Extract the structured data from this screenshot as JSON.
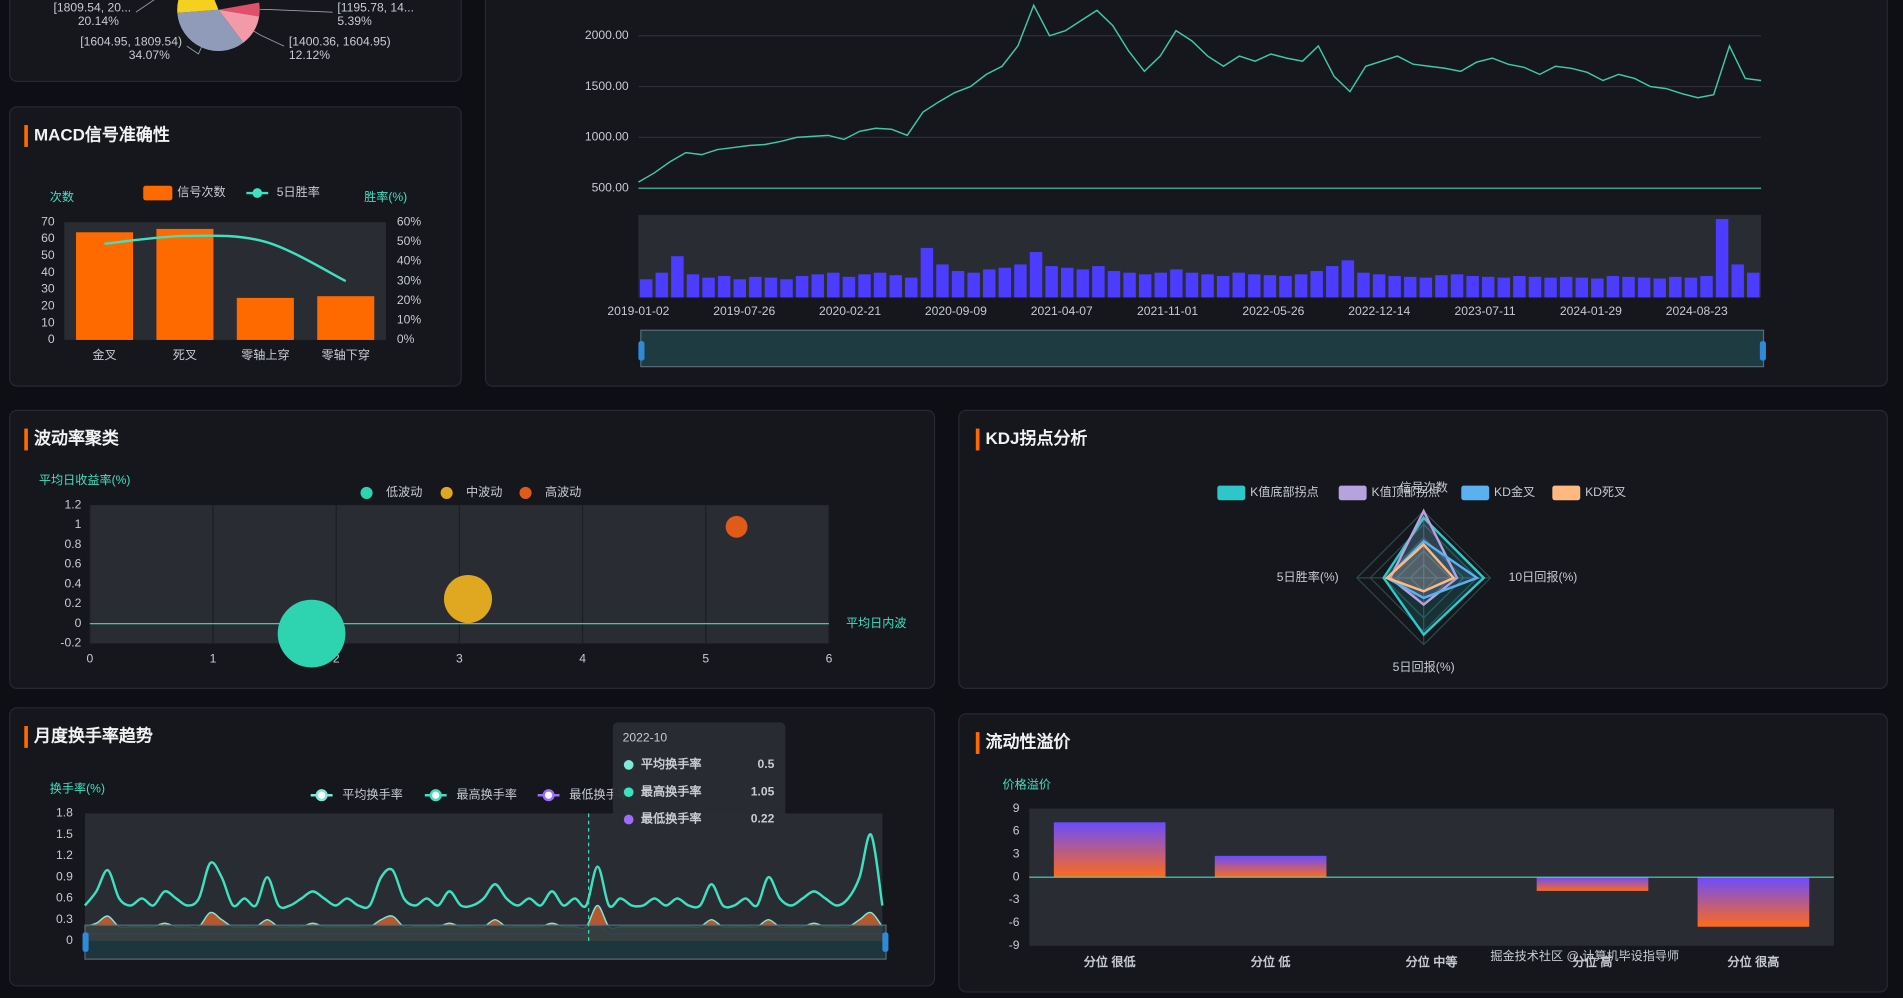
{
  "pie": {
    "labels": [
      "[1195.78, 14...",
      "[1400.36, 1604.95)",
      "[1604.95, 1809.54)",
      "[1809.54, 20..."
    ],
    "values": [
      5.39,
      12.12,
      34.07,
      20.14
    ],
    "value_labels": [
      "5.39%",
      "12.12%",
      "34.07%",
      "20.14%"
    ],
    "colors": [
      "#e0506a",
      "#f29aa8",
      "#8f9bb8",
      "#f5d01e"
    ]
  },
  "macd": {
    "title": "MACD信号准确性",
    "y_name": "次数",
    "y2_name": "胜率(%)",
    "categories": [
      "金叉",
      "死叉",
      "零轴上穿",
      "零轴下穿"
    ],
    "series": [
      {
        "name": "信号次数",
        "color": "#ff6a00",
        "values": [
          64,
          66,
          25,
          26
        ]
      },
      {
        "name": "5日胜率",
        "color": "#3ee0c0",
        "values": [
          49,
          53,
          50,
          30
        ],
        "axis": "y2"
      }
    ],
    "ylim": [
      0,
      70
    ],
    "yticks": [
      0,
      10,
      20,
      30,
      40,
      50,
      60,
      70
    ],
    "y2lim": [
      0,
      60
    ],
    "y2ticks": [
      {
        "value": 0,
        "label": "0%"
      },
      {
        "value": 10,
        "label": "10%"
      },
      {
        "value": 20,
        "label": "20%"
      },
      {
        "value": 30,
        "label": "30%"
      },
      {
        "value": 40,
        "label": "40%"
      },
      {
        "value": 50,
        "label": "50%"
      },
      {
        "value": 60,
        "label": "60%"
      }
    ]
  },
  "price": {
    "x_labels": [
      "2019-01-02",
      "2019-07-26",
      "2020-02-21",
      "2020-09-09",
      "2021-04-07",
      "2021-11-01",
      "2022-05-26",
      "2022-12-14",
      "2023-07-11",
      "2024-01-29",
      "2024-08-23"
    ],
    "values": [
      560,
      650,
      760,
      850,
      830,
      880,
      900,
      920,
      930,
      960,
      1000,
      1010,
      1020,
      980,
      1060,
      1090,
      1080,
      1020,
      1250,
      1350,
      1440,
      1500,
      1620,
      1700,
      1900,
      2300,
      2000,
      2050,
      2150,
      2250,
      2100,
      1850,
      1650,
      1800,
      2050,
      1950,
      1800,
      1700,
      1800,
      1750,
      1820,
      1780,
      1750,
      1900,
      1600,
      1450,
      1700,
      1750,
      1800,
      1720,
      1700,
      1680,
      1650,
      1740,
      1780,
      1720,
      1690,
      1620,
      1700,
      1680,
      1640,
      1560,
      1620,
      1580,
      1500,
      1480,
      1430,
      1390,
      1420,
      1900,
      1580,
      1560
    ],
    "color": "#3ec9a8",
    "ylim": [
      500,
      2340
    ],
    "yticks": [
      {
        "value": 500,
        "label": "500.00"
      },
      {
        "value": 1000,
        "label": "1000.00"
      },
      {
        "value": 1500,
        "label": "1500.00"
      },
      {
        "value": 2000,
        "label": "2000.00"
      }
    ],
    "volume": {
      "color": "#4b3cff",
      "ylim": [
        0,
        100
      ],
      "values": [
        22,
        30,
        50,
        28,
        24,
        26,
        22,
        25,
        24,
        22,
        26,
        28,
        30,
        25,
        28,
        30,
        27,
        24,
        60,
        40,
        32,
        30,
        34,
        36,
        40,
        55,
        38,
        36,
        34,
        38,
        32,
        30,
        28,
        30,
        34,
        30,
        28,
        26,
        30,
        28,
        27,
        26,
        28,
        32,
        38,
        45,
        30,
        28,
        26,
        25,
        24,
        27,
        28,
        26,
        25,
        24,
        26,
        25,
        24,
        25,
        24,
        23,
        26,
        25,
        24,
        23,
        25,
        24,
        26,
        95,
        40,
        30
      ]
    }
  },
  "volatility": {
    "title": "波动率聚类",
    "y_name": "平均日收益率(%)",
    "x_name": "平均日内波",
    "xlim": [
      0,
      6
    ],
    "ylim": [
      -0.2,
      1.2
    ],
    "xticks": [
      0,
      1,
      2,
      3,
      4,
      5,
      6
    ],
    "yticks": [
      -0.2,
      0,
      0.2,
      0.4,
      0.6,
      0.8,
      1,
      1.2
    ],
    "series": [
      {
        "name": "低波动",
        "color": "#2ed3b0",
        "x": [
          1.8
        ],
        "values": [
          -0.1
        ],
        "sizes": [
          3.1
        ]
      },
      {
        "name": "中波动",
        "color": "#e0a820",
        "x": [
          3.07
        ],
        "values": [
          0.25
        ],
        "sizes": [
          2.2
        ]
      },
      {
        "name": "高波动",
        "color": "#e05a1a",
        "x": [
          5.25
        ],
        "values": [
          0.98
        ],
        "sizes": [
          1
        ]
      }
    ]
  },
  "kdj": {
    "title": "KDJ拐点分析",
    "indicators": [
      "信号次数",
      "10日回报(%)",
      "5日回报(%)",
      "5日胜率(%)"
    ],
    "rlim": [
      0,
      1
    ],
    "series": [
      {
        "name": "K值底部拐点",
        "color": "#2ec7c9",
        "values": [
          0.9,
          0.9,
          0.85,
          0.6
        ]
      },
      {
        "name": "K值顶部拐点",
        "color": "#b6a2de",
        "values": [
          1,
          0.5,
          0.4,
          0.5
        ]
      },
      {
        "name": "KD金叉",
        "color": "#5ab1ef",
        "values": [
          0.55,
          0.8,
          0.3,
          0.55
        ]
      },
      {
        "name": "KD死叉",
        "color": "#ffb980",
        "values": [
          0.5,
          0.45,
          0.2,
          0.55
        ]
      }
    ]
  },
  "turnover": {
    "title": "月度换手率趋势",
    "y_name": "换手率(%)",
    "ylim": [
      0,
      1.8
    ],
    "yticks": [
      0,
      0.3,
      0.6,
      0.9,
      1.2,
      1.5,
      1.8
    ],
    "tooltip_title": "2022-10",
    "area_color": "#e8662a",
    "series": [
      {
        "name": "平均换手率",
        "color": "#7fe8d8",
        "values": [
          0.2,
          0.25,
          0.35,
          0.2,
          0.2,
          0.2,
          0.2,
          0.25,
          0.2,
          0.2,
          0.2,
          0.4,
          0.3,
          0.2,
          0.2,
          0.2,
          0.3,
          0.2,
          0.2,
          0.2,
          0.25,
          0.2,
          0.2,
          0.2,
          0.2,
          0.2,
          0.3,
          0.35,
          0.2,
          0.2,
          0.2,
          0.2,
          0.25,
          0.2,
          0.2,
          0.2,
          0.3,
          0.2,
          0.2,
          0.2,
          0.2,
          0.25,
          0.2,
          0.2,
          0.2,
          0.5,
          0.2,
          0.2,
          0.2,
          0.2,
          0.2,
          0.2,
          0.2,
          0.2,
          0.2,
          0.3,
          0.2,
          0.2,
          0.2,
          0.2,
          0.3,
          0.2,
          0.2,
          0.2,
          0.25,
          0.2,
          0.2,
          0.2,
          0.3,
          0.4,
          0.2
        ]
      },
      {
        "name": "最高换手率",
        "color": "#3ee0c0",
        "values": [
          0.5,
          0.7,
          1.0,
          0.6,
          0.5,
          0.6,
          0.5,
          0.7,
          0.6,
          0.5,
          0.6,
          1.1,
          0.9,
          0.5,
          0.6,
          0.5,
          0.9,
          0.5,
          0.5,
          0.6,
          0.7,
          0.6,
          0.5,
          0.6,
          0.5,
          0.5,
          0.9,
          1.0,
          0.6,
          0.5,
          0.6,
          0.5,
          0.7,
          0.5,
          0.5,
          0.6,
          0.8,
          0.6,
          0.5,
          0.6,
          0.5,
          0.7,
          0.5,
          0.6,
          0.5,
          1.05,
          0.5,
          0.6,
          0.5,
          0.5,
          0.6,
          0.5,
          0.6,
          0.5,
          0.5,
          0.8,
          0.5,
          0.5,
          0.6,
          0.5,
          0.9,
          0.6,
          0.5,
          0.6,
          0.7,
          0.6,
          0.5,
          0.6,
          0.9,
          1.5,
          0.5
        ]
      },
      {
        "name": "最低换手率",
        "color": "#9f6bff",
        "values": [
          0.1,
          0.1,
          0.1,
          0.1,
          0.1,
          0.1,
          0.1,
          0.1,
          0.1,
          0.1,
          0.1,
          0.1,
          0.1,
          0.1,
          0.1,
          0.1,
          0.1,
          0.1,
          0.1,
          0.1,
          0.1,
          0.1,
          0.1,
          0.1,
          0.1,
          0.1,
          0.1,
          0.1,
          0.1,
          0.1,
          0.1,
          0.1,
          0.1,
          0.1,
          0.1,
          0.1,
          0.1,
          0.1,
          0.1,
          0.1,
          0.1,
          0.1,
          0.1,
          0.1,
          0.1,
          0.22,
          0.1,
          0.1,
          0.1,
          0.1,
          0.1,
          0.1,
          0.1,
          0.1,
          0.1,
          0.1,
          0.1,
          0.1,
          0.1,
          0.1,
          0.1,
          0.1,
          0.1,
          0.1,
          0.1,
          0.1,
          0.1,
          0.1,
          0.1,
          0.1,
          0.1
        ]
      }
    ]
  },
  "liquidity": {
    "title": "流动性溢价",
    "y_name": "价格溢价",
    "categories": [
      "分位 很低",
      "分位 低",
      "分位 中等",
      "分位 高",
      "分位 很高"
    ],
    "values": [
      7.2,
      2.8,
      0,
      -1.8,
      -6.5
    ],
    "colors": [
      "#6a4cff",
      "#ff6a1a"
    ],
    "ylim": [
      -9,
      9
    ],
    "yticks": [
      -9,
      -6,
      -3,
      0,
      3,
      6,
      9
    ]
  },
  "watermark": "掘金技术社区 @ 计算机毕设指导师"
}
